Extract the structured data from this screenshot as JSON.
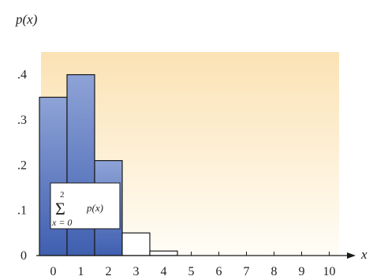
{
  "chart_data": {
    "type": "bar",
    "x": [
      0,
      1,
      2,
      3,
      4,
      5,
      6,
      7,
      8,
      9,
      10
    ],
    "values": [
      0.35,
      0.4,
      0.21,
      0.05,
      0.01,
      0,
      0,
      0,
      0,
      0,
      0
    ],
    "highlighted": [
      0,
      1,
      2
    ],
    "xlabel": "x",
    "ylabel": "p(x)",
    "ylim": [
      0,
      0.45
    ],
    "yticks": [
      0,
      0.1,
      0.2,
      0.3,
      0.4
    ],
    "ytick_labels": [
      "0",
      ".1",
      ".2",
      ".3",
      ".4"
    ],
    "xtick_labels": [
      "0",
      "1",
      "2",
      "3",
      "4",
      "5",
      "6",
      "7",
      "8",
      "9",
      "10"
    ],
    "annotation": {
      "sigma": "Σ",
      "upper": "2",
      "lower": "x = 0",
      "term": "p(x)"
    },
    "colors": {
      "highlight_top": "#8ea3d6",
      "highlight_bottom": "#3f5fb0",
      "plain_bar": "#ffffff",
      "bar_stroke": "#1a1a1a",
      "background_top": "#fbe2b4",
      "background_bottom": "#fffdf7"
    }
  }
}
